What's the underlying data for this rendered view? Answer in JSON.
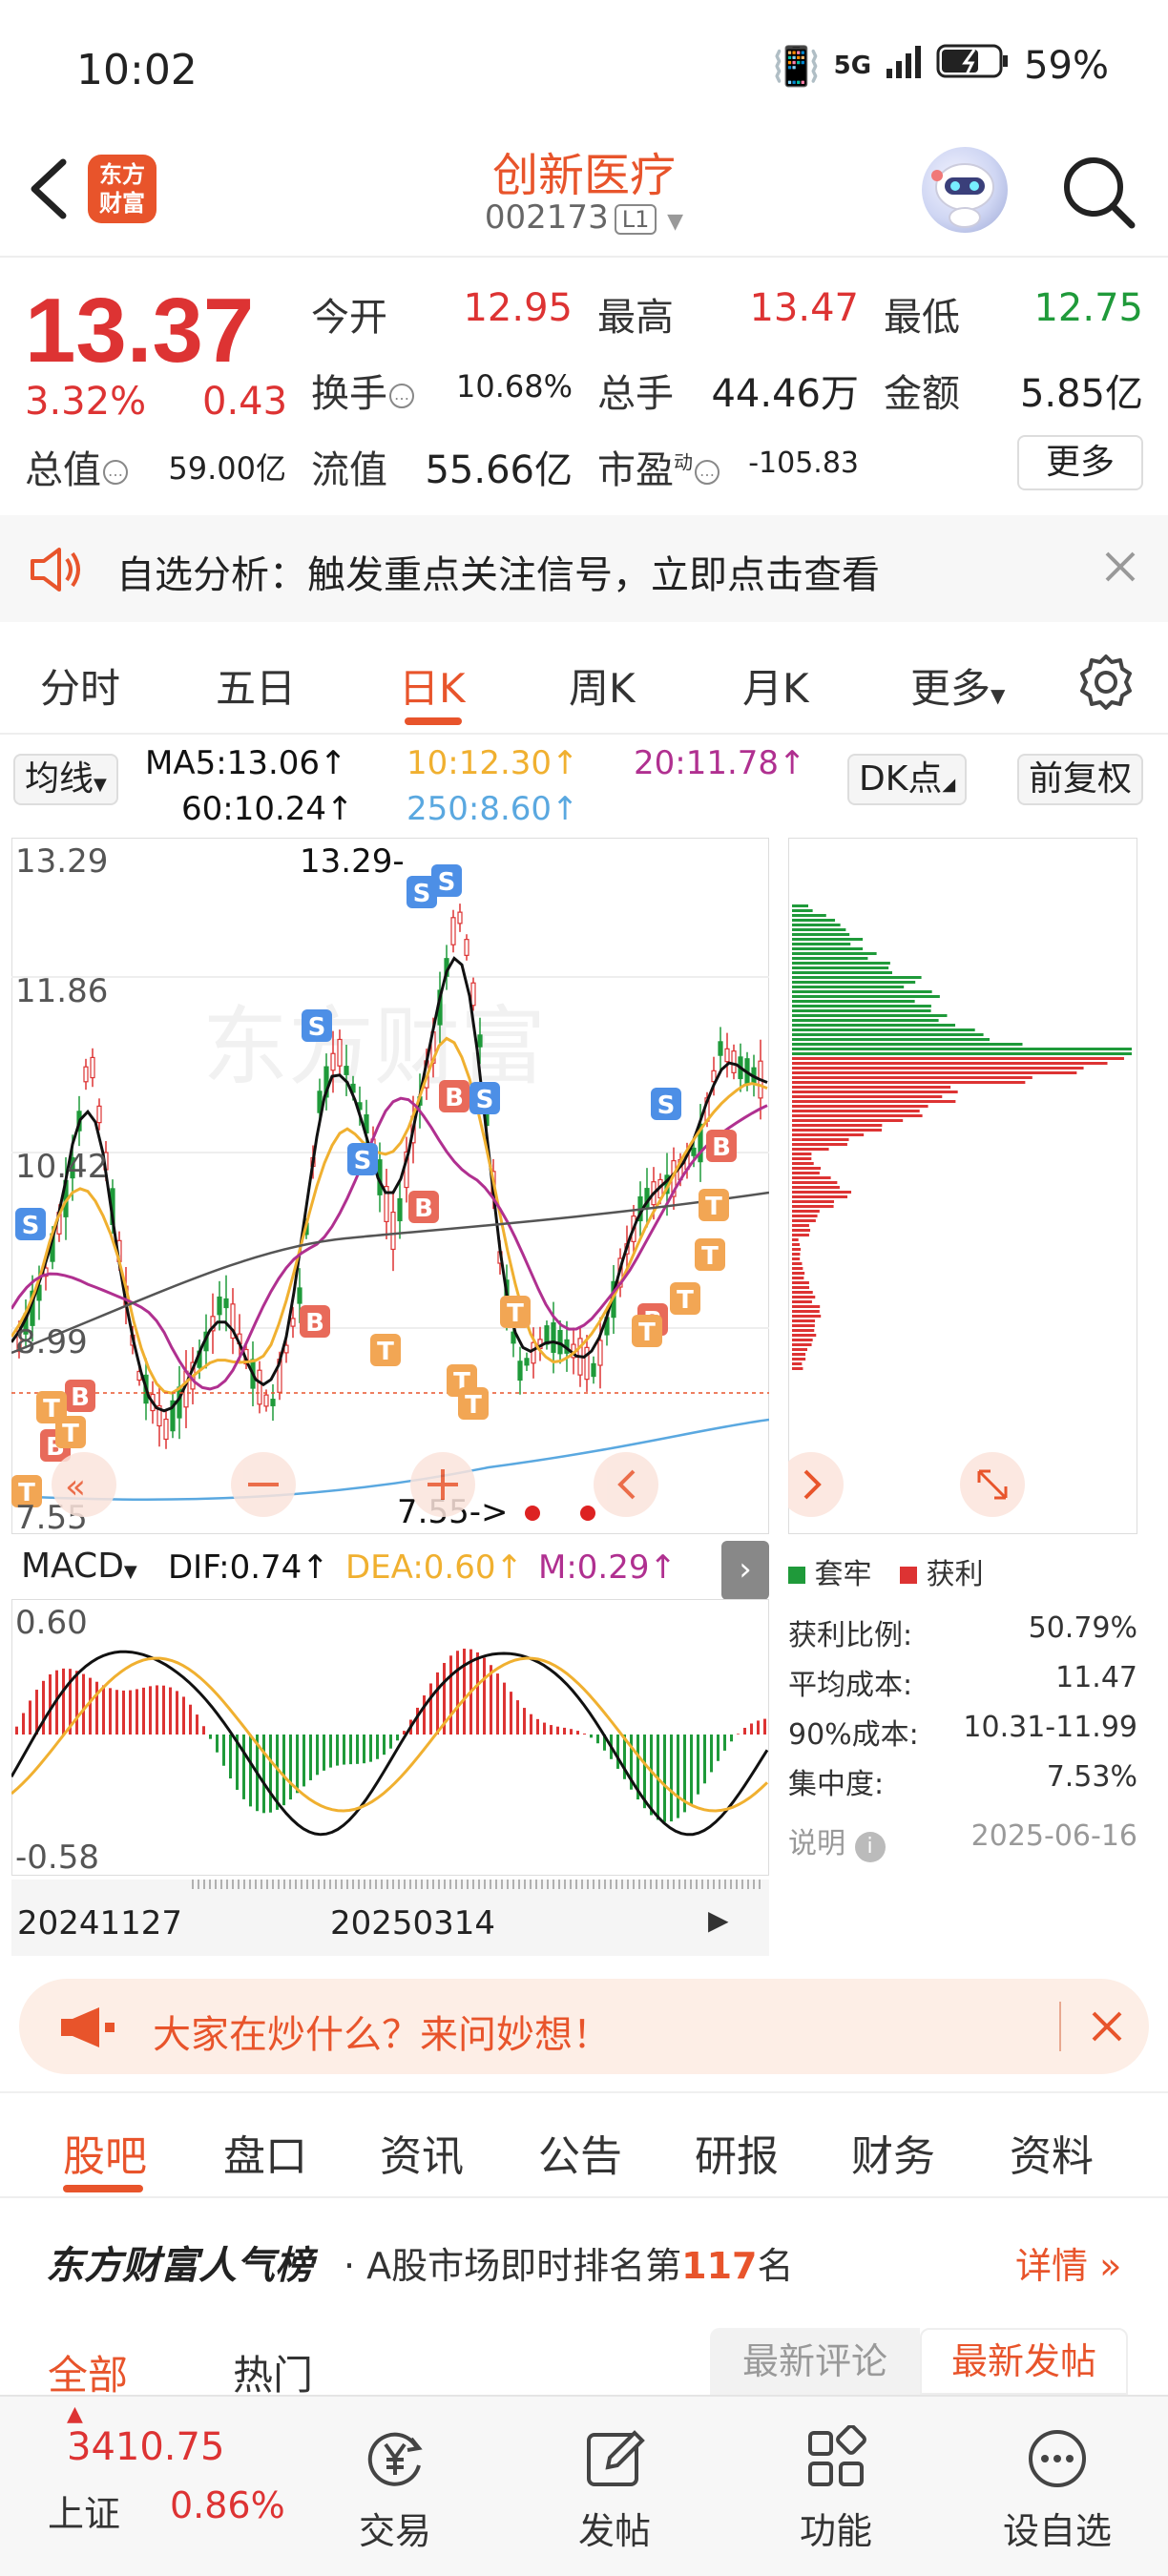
{
  "status_bar": {
    "time": "10:02",
    "network": "5G",
    "battery": "59%"
  },
  "header": {
    "logo_text_line1": "东方",
    "logo_text_line2": "财富",
    "stock_name": "创新医疗",
    "stock_code": "002173",
    "level": "L1"
  },
  "quote": {
    "price": "13.37",
    "change_pct": "3.32%",
    "change_abs": "0.43",
    "open_label": "今开",
    "open": "12.95",
    "high_label": "最高",
    "high": "13.47",
    "low_label": "最低",
    "low": "12.75",
    "turnover_label": "换手",
    "turnover": "10.68%",
    "volume_label": "总手",
    "volume": "44.46万",
    "amount_label": "金额",
    "amount": "5.85亿",
    "mktcap_label": "总值",
    "mktcap": "59.00亿",
    "float_label": "流值",
    "float_cap": "55.66亿",
    "pe_label": "市盈",
    "pe_sup": "动",
    "pe": "-105.83",
    "more_label": "更多"
  },
  "notice": {
    "text": "自选分析：触发重点关注信号，立即点击查看"
  },
  "chart_tabs": [
    {
      "label": "分时"
    },
    {
      "label": "五日"
    },
    {
      "label": "日K"
    },
    {
      "label": "周K"
    },
    {
      "label": "月K"
    },
    {
      "label": "更多"
    }
  ],
  "ma": {
    "selector": "均线",
    "ma5": "MA5:13.06↑",
    "ma10": "10:12.30↑",
    "ma20": "20:11.78↑",
    "ma60": "60:10.24↑",
    "ma250": "250:8.60↑",
    "dk": "DK点",
    "adjust": "前复权"
  },
  "kline": {
    "y_top": "13.29",
    "y_mid1": "11.86",
    "y_mid2": "10.42",
    "y_mid3": "8.99",
    "y_bottom": "7.55",
    "high_marker": "13.29-",
    "low_marker": "7.55->"
  },
  "macd": {
    "selector": "MACD",
    "dif": "DIF:0.74↑",
    "dea": "DEA:0.60↑",
    "m": "M:0.29↑",
    "y_top": "0.60",
    "y_bottom": "-0.58"
  },
  "dates": {
    "start": "20241127",
    "mid": "20250314"
  },
  "chip": {
    "legend_trapped": "套牢",
    "legend_profit": "获利",
    "profit_ratio_label": "获利比例:",
    "profit_ratio": "50.79%",
    "avg_cost_label": "平均成本:",
    "avg_cost": "11.47",
    "cost90_label": "90%成本:",
    "cost90": "10.31-11.99",
    "concentration_label": "集中度:",
    "concentration": "7.53%",
    "note_label": "说明",
    "date": "2025-06-16"
  },
  "promo": {
    "text": "大家在炒什么？来问妙想！"
  },
  "sub_tabs": [
    {
      "label": "股吧"
    },
    {
      "label": "盘口"
    },
    {
      "label": "资讯"
    },
    {
      "label": "公告"
    },
    {
      "label": "研报"
    },
    {
      "label": "财务"
    },
    {
      "label": "资料"
    }
  ],
  "rank": {
    "brand": "东方财富人气榜",
    "text_prefix": "· A股市场即时排名第",
    "rank_num": "117",
    "text_suffix": "名",
    "detail": "详情"
  },
  "filters": {
    "all": "全部",
    "hot": "热门",
    "latest_comment": "最新评论",
    "latest_post": "最新发帖"
  },
  "bottom_nav": {
    "index_value": "3410.75",
    "index_name": "上证",
    "index_change": "0.86%",
    "trade": "交易",
    "post": "发帖",
    "features": "功能",
    "watchlist": "设自选"
  },
  "colors": {
    "accent": "#e8542b",
    "up": "#dd3333",
    "down": "#1f9a3a",
    "ma5": "#111111",
    "ma10": "#f0b030",
    "ma20": "#b03090",
    "ma60": "#555555",
    "ma250": "#5aa8e0"
  }
}
